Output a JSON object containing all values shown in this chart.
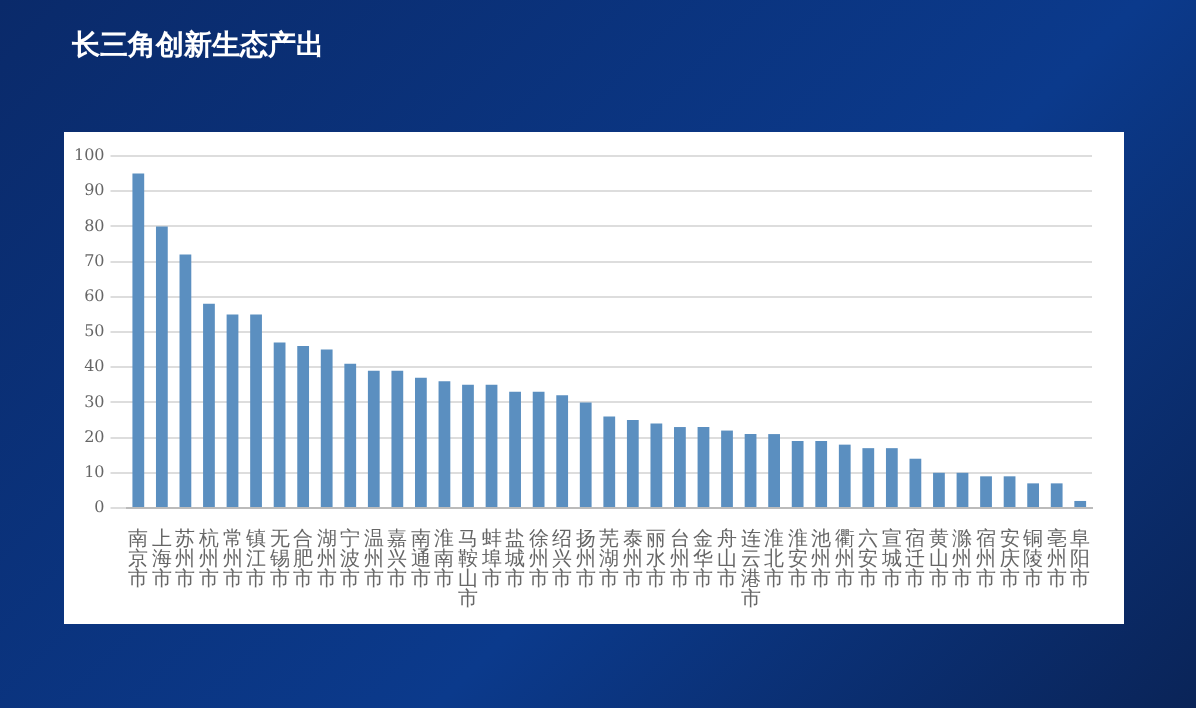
{
  "chart_data": {
    "type": "bar",
    "title": "长三角创新生态产出",
    "categories": [
      "南京市",
      "上海市",
      "苏州市",
      "杭州市",
      "常州市",
      "镇江市",
      "无锡市",
      "合肥市",
      "湖州市",
      "宁波市",
      "温州市",
      "嘉兴市",
      "南通市",
      "淮南市",
      "马鞍山市",
      "蚌埠市",
      "盐城市",
      "徐州市",
      "绍兴市",
      "扬州市",
      "芜湖市",
      "泰州市",
      "丽水市",
      "台州市",
      "金华市",
      "舟山市",
      "连云港市",
      "淮北市",
      "淮安市",
      "池州市",
      "衢州市",
      "六安市",
      "宣城市",
      "宿迁市",
      "黄山市",
      "滁州市",
      "宿州市",
      "安庆市",
      "铜陵市",
      "亳州市",
      "阜阳市"
    ],
    "values": [
      95,
      80,
      72,
      58,
      55,
      55,
      47,
      46,
      45,
      41,
      39,
      39,
      37,
      36,
      35,
      35,
      33,
      33,
      32,
      30,
      26,
      25,
      24,
      23,
      23,
      22,
      21,
      21,
      19,
      19,
      18,
      17,
      17,
      14,
      10,
      10,
      9,
      9,
      7,
      7,
      2
    ],
    "color": "#5b8fc0",
    "ylim": [
      0,
      100
    ],
    "yticks": [
      0,
      10,
      20,
      30,
      40,
      50,
      60,
      70,
      80,
      90,
      100
    ],
    "grid": "y",
    "legend": false
  }
}
